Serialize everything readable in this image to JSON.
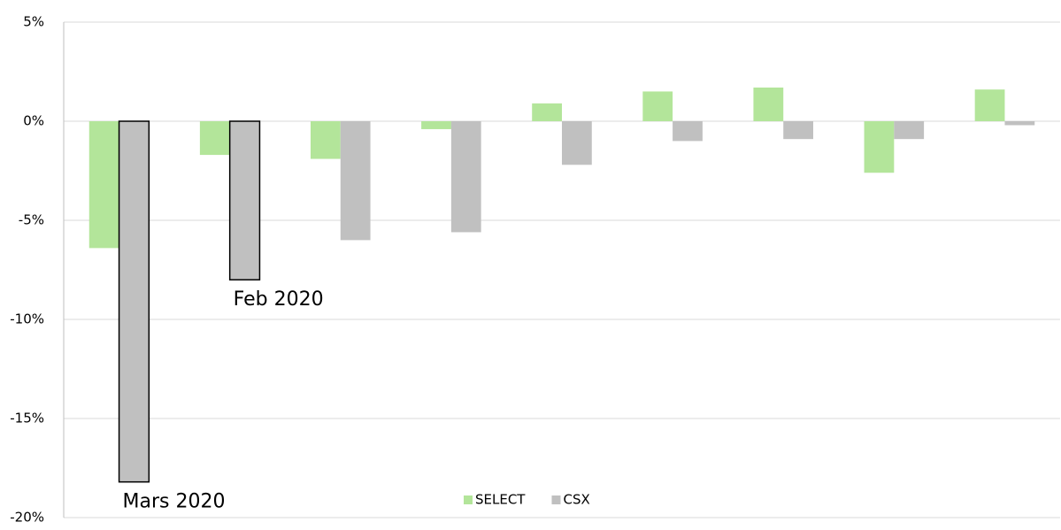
{
  "chart_data": {
    "type": "bar",
    "categories": [
      null,
      null,
      null,
      null,
      null,
      null,
      null,
      null,
      null
    ],
    "series": [
      {
        "name": "SELECT",
        "color": "#b3e59a",
        "values": [
          -6.4,
          -1.7,
          -1.9,
          -0.4,
          0.9,
          1.5,
          1.7,
          -2.6,
          1.6
        ]
      },
      {
        "name": "CSX",
        "color": "#c0c0c0",
        "values": [
          -18.2,
          -8.0,
          -6.0,
          -5.6,
          -2.2,
          -1.0,
          -0.9,
          -0.9,
          -0.2
        ]
      }
    ],
    "ylim": [
      -20,
      5
    ],
    "yticks": [
      {
        "value": 5,
        "label": "5%"
      },
      {
        "value": 0,
        "label": "0%"
      },
      {
        "value": -5,
        "label": "-5%"
      },
      {
        "value": -10,
        "label": "-10%"
      },
      {
        "value": -15,
        "label": "-15%"
      },
      {
        "value": -20,
        "label": "-20%"
      }
    ],
    "grid": true,
    "legend": "bottom",
    "annotations": [
      "Mars 2020",
      "Feb 2020"
    ]
  }
}
